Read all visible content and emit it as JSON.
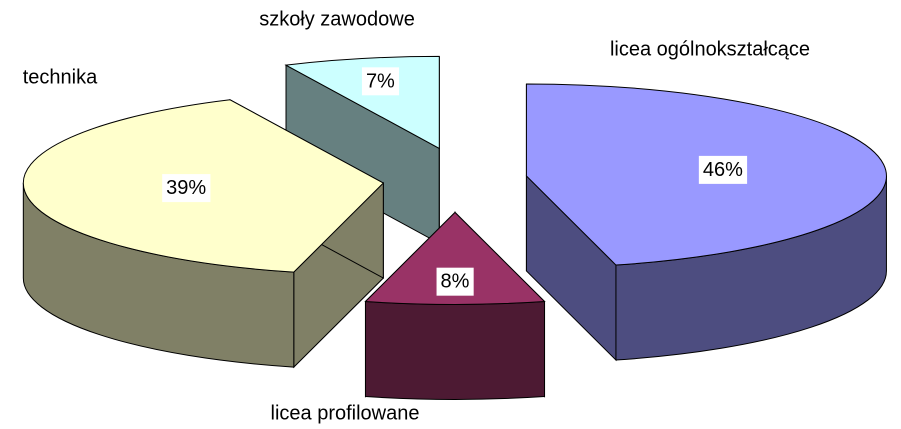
{
  "chart_data": {
    "type": "pie3d",
    "categories": [
      "licea ogólnokształcące",
      "licea profilowane",
      "technika",
      "szkoły zawodowe"
    ],
    "values": [
      46,
      8,
      39,
      7
    ],
    "value_labels": [
      "46%",
      "8%",
      "39%",
      "7%"
    ],
    "colors": [
      "#9999ff",
      "#993366",
      "#ffffcc",
      "#ccffff"
    ]
  }
}
